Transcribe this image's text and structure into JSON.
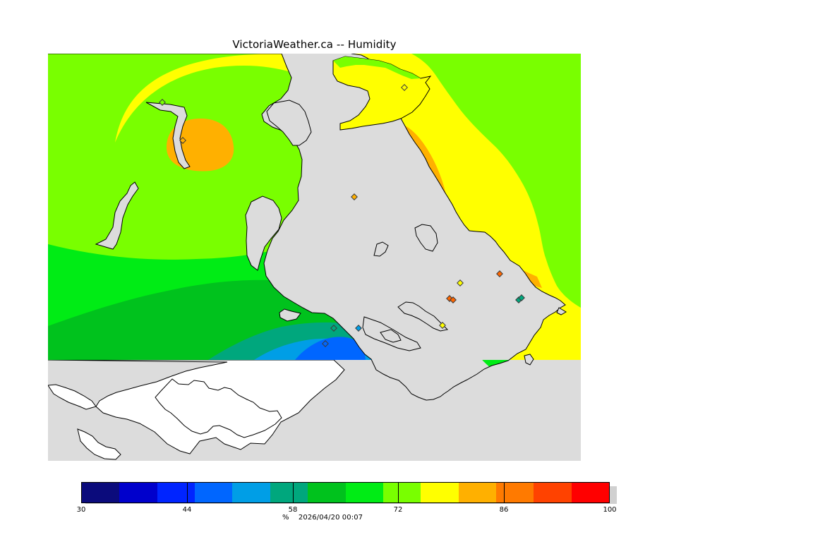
{
  "header": {
    "title": "VictoriaWeather.ca -- Humidity"
  },
  "legend": {
    "unit": "%",
    "timestamp": "2026/04/20 00:07",
    "tick_labels": [
      "30",
      "44",
      "58",
      "72",
      "86",
      "100"
    ],
    "tick_values": [
      30,
      44,
      58,
      72,
      86,
      100
    ],
    "range": [
      30,
      100
    ],
    "bins": [
      {
        "from": 30,
        "to": 35,
        "color": "#0b0b7c"
      },
      {
        "from": 35,
        "to": 40,
        "color": "#0000cc"
      },
      {
        "from": 40,
        "to": 45,
        "color": "#0024ff"
      },
      {
        "from": 45,
        "to": 50,
        "color": "#0066ff"
      },
      {
        "from": 50,
        "to": 55,
        "color": "#009ee6"
      },
      {
        "from": 55,
        "to": 60,
        "color": "#00a77d"
      },
      {
        "from": 60,
        "to": 65,
        "color": "#00c21d"
      },
      {
        "from": 65,
        "to": 70,
        "color": "#00ec15"
      },
      {
        "from": 70,
        "to": 75,
        "color": "#79ff00"
      },
      {
        "from": 75,
        "to": 80,
        "color": "#ffff00"
      },
      {
        "from": 80,
        "to": 85,
        "color": "#ffb000"
      },
      {
        "from": 85,
        "to": 90,
        "color": "#ff7a00"
      },
      {
        "from": 90,
        "to": 95,
        "color": "#ff4200"
      },
      {
        "from": 95,
        "to": 100,
        "color": "#ff0000"
      }
    ]
  },
  "map": {
    "colors": {
      "background": "#dcdcdc",
      "white_area": "#ffffff",
      "green_light": "#79ff00",
      "green_mid": "#00ec15",
      "green_dark": "#00c21d",
      "teal": "#00a77d",
      "sky": "#009ee6",
      "blue": "#0066ff",
      "yellow": "#ffff00",
      "orange": "#ffb000",
      "red_orange": "#ff6600"
    }
  }
}
